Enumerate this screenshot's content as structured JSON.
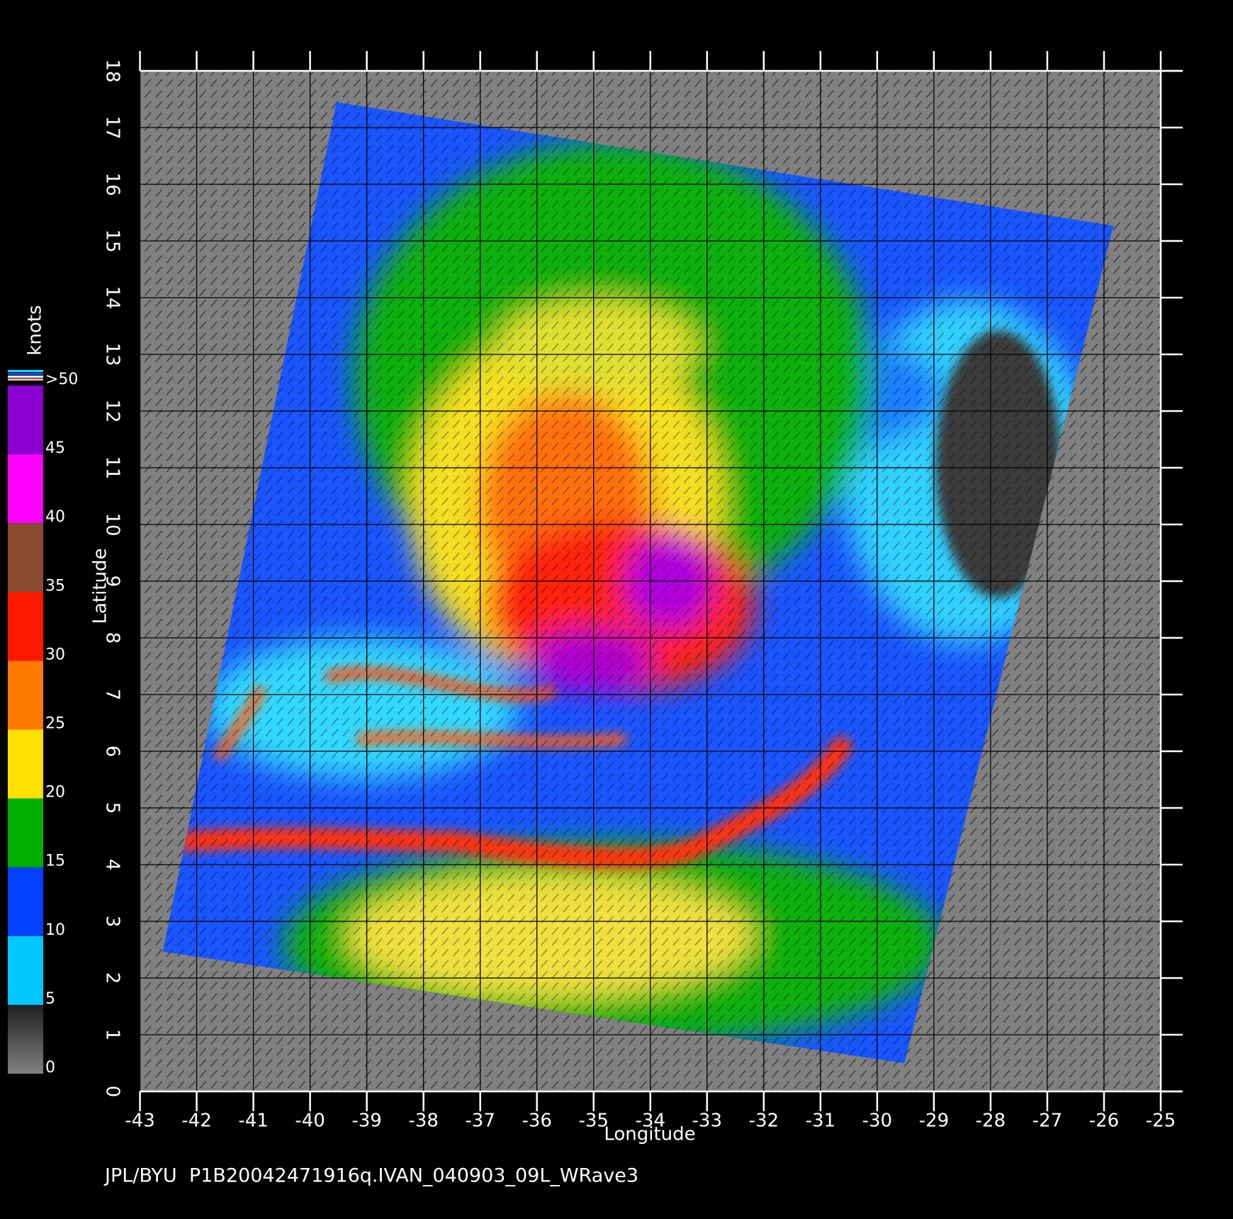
{
  "chart_data": {
    "type": "map",
    "caption": "JPL/BYU  P1B20042471916q.IVAN_040903_09L_WRave3",
    "xlabel": "Longitude",
    "ylabel": "Latitude",
    "xlim": [
      -43,
      -25
    ],
    "ylim": [
      0,
      18
    ],
    "xticks": [
      -43,
      -42,
      -41,
      -40,
      -39,
      -38,
      -37,
      -36,
      -35,
      -34,
      -33,
      -32,
      -31,
      -30,
      -29,
      -28,
      -27,
      -26,
      -25
    ],
    "yticks": [
      0,
      1,
      2,
      3,
      4,
      5,
      6,
      7,
      8,
      9,
      10,
      11,
      12,
      13,
      14,
      15,
      16,
      17,
      18
    ],
    "grid": true,
    "colorbar": {
      "label": "knots",
      "lim": [
        0,
        50
      ],
      "ticks": [
        0,
        5,
        10,
        15,
        20,
        25,
        30,
        35,
        40,
        45,
        {
          "value": 50,
          "label": ">50"
        }
      ],
      "colors": [
        "#555555",
        "#00c8ff",
        "#0040ff",
        "#00b000",
        "#ffe000",
        "#ff7a00",
        "#ff1800",
        "#8a4a30",
        "#ff00ff",
        "#8a00d0"
      ]
    }
  }
}
